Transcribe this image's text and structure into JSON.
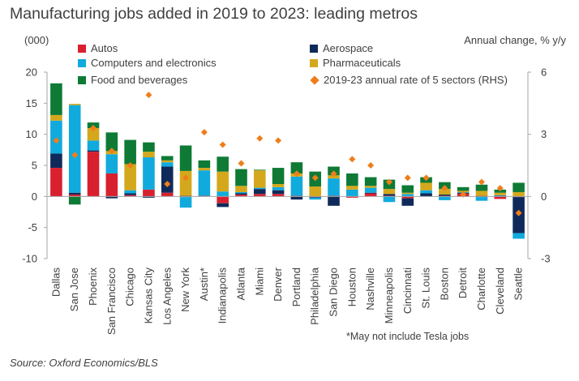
{
  "title": "Manufacturing jobs added in 2019 to 2023: leading metros",
  "left_unit": "(000)",
  "right_unit": "Annual change, % y/y",
  "footnote": "*May not include Tesla jobs",
  "source": "Source: Oxford Economics/BLS",
  "chart_data": {
    "type": "bar",
    "stacked": true,
    "title": "Manufacturing jobs added in 2019 to 2023: leading metros",
    "ylim": [
      -10,
      20
    ],
    "y_ticks": [
      -10,
      -5,
      0,
      5,
      10,
      15,
      20
    ],
    "y2lim": [
      -3,
      6
    ],
    "y2_ticks": [
      -3,
      0,
      3,
      6
    ],
    "legend_position": "top",
    "categories": [
      "Dallas",
      "San Jose",
      "Phoenix",
      "San Francisco",
      "Chicago",
      "Kansas City",
      "Los Angeles",
      "New York",
      "Austin*",
      "Indianapolis",
      "Atlanta",
      "Miami",
      "Denver",
      "Portland",
      "Philadelphia",
      "San Diego",
      "Houston",
      "Nashville",
      "Minneapolis",
      "Cincinnati",
      "St. Louis",
      "Boston",
      "Detroit",
      "Charlotte",
      "Cleveland",
      "Seattle"
    ],
    "series": [
      {
        "name": "Autos",
        "color": "#d9202f",
        "axis": "left",
        "values": [
          4.6,
          0.3,
          7.2,
          3.7,
          0.2,
          1.1,
          0.6,
          -0.1,
          0.1,
          -1.1,
          0.3,
          0.4,
          0.4,
          0.1,
          -0.1,
          0.1,
          -0.2,
          0.5,
          0.1,
          -0.3,
          0.0,
          0.1,
          0.5,
          0.1,
          -0.4,
          -0.1
        ]
      },
      {
        "name": "Aerospace",
        "color": "#0f2a5a",
        "axis": "left",
        "values": [
          2.3,
          0.3,
          0.2,
          -0.3,
          0.3,
          -0.2,
          4.2,
          0.1,
          0.0,
          -0.6,
          0.2,
          0.8,
          0.6,
          -0.5,
          -0.1,
          -1.5,
          0.0,
          0.1,
          0.3,
          -1.2,
          0.5,
          0.2,
          0.1,
          -0.1,
          0.1,
          -5.8
        ]
      },
      {
        "name": "Computers and electronics",
        "color": "#11aadd",
        "axis": "left",
        "values": [
          5.3,
          14.1,
          1.6,
          3.1,
          0.5,
          5.2,
          0.7,
          -1.7,
          4.1,
          0.8,
          0.2,
          0.2,
          0.5,
          3.1,
          -0.3,
          2.8,
          1.1,
          0.8,
          -0.9,
          0.4,
          0.5,
          -0.6,
          0.1,
          -0.6,
          0.1,
          -0.9
        ]
      },
      {
        "name": "Pharmaceuticals",
        "color": "#d4a81c",
        "axis": "left",
        "values": [
          0.9,
          0.2,
          2.0,
          0.5,
          4.2,
          0.9,
          0.3,
          4.0,
          0.4,
          3.2,
          1.0,
          2.8,
          0.5,
          0.5,
          1.6,
          0.5,
          0.6,
          0.3,
          0.8,
          0.2,
          1.2,
          0.9,
          0.2,
          0.8,
          0.4,
          0.7
        ]
      },
      {
        "name": "Food and beverages",
        "color": "#0e7a35",
        "axis": "left",
        "values": [
          5.1,
          -1.3,
          0.9,
          3.0,
          3.9,
          1.5,
          0.7,
          4.1,
          1.2,
          2.4,
          2.7,
          0.1,
          2.6,
          1.8,
          2.4,
          1.4,
          2.0,
          1.4,
          1.5,
          1.2,
          0.9,
          1.1,
          0.6,
          1.0,
          0.5,
          1.5
        ]
      },
      {
        "name": "2019-23 annual rate of 5 sectors (RHS)",
        "color": "#f07d1a",
        "axis": "right",
        "marker": "diamond",
        "values": [
          2.7,
          2.0,
          3.3,
          2.2,
          1.5,
          4.9,
          0.6,
          0.9,
          3.1,
          2.5,
          1.6,
          2.8,
          2.7,
          1.1,
          0.9,
          1.1,
          1.8,
          1.5,
          0.7,
          0.9,
          0.9,
          0.4,
          0.1,
          0.7,
          0.4,
          -0.8
        ]
      }
    ]
  }
}
